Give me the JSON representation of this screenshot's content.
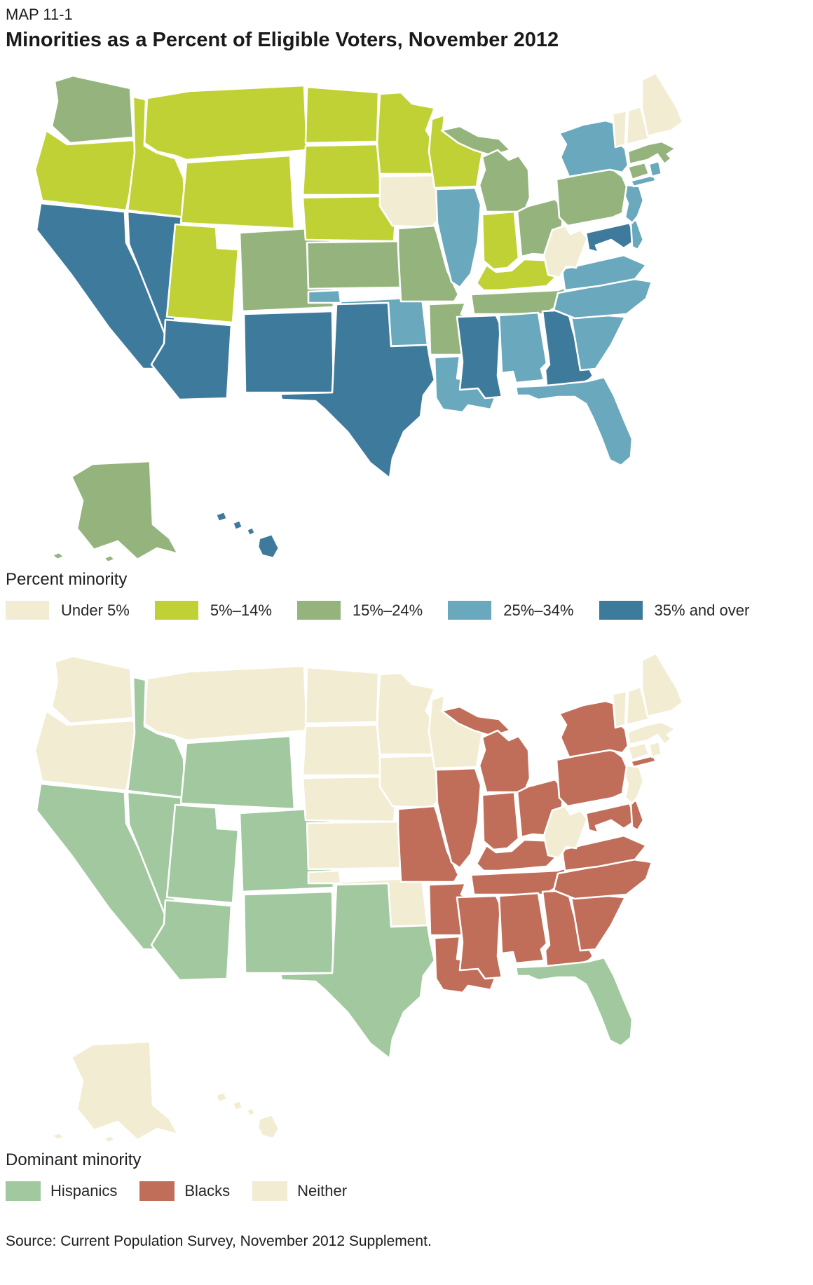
{
  "page": {
    "kicker": "MAP 11-1",
    "title": "Minorities as a Percent of Eligible Voters, November 2012",
    "source": "Source: Current Population Survey, November 2012 Supplement."
  },
  "chart_data": [
    {
      "type": "choropleth-map",
      "id": "percent-minority",
      "legend_title": "Percent minority",
      "legend_position": "below",
      "categories": [
        {
          "id": "under5",
          "label": "Under 5%",
          "color": "#f2ecd2"
        },
        {
          "id": "pct5_14",
          "label": "5%–14%",
          "color": "#c0d135"
        },
        {
          "id": "pct15_24",
          "label": "15%–24%",
          "color": "#95b47d"
        },
        {
          "id": "pct25_34",
          "label": "25%–34%",
          "color": "#69a8bd"
        },
        {
          "id": "pct35over",
          "label": "35% and over",
          "color": "#3e7a9c"
        }
      ],
      "states": {
        "WA": "pct15_24",
        "OR": "pct5_14",
        "CA": "pct35over",
        "NV": "pct35over",
        "ID": "pct5_14",
        "MT": "pct5_14",
        "WY": "pct5_14",
        "UT": "pct5_14",
        "CO": "pct15_24",
        "AZ": "pct35over",
        "NM": "pct35over",
        "ND": "pct5_14",
        "SD": "pct5_14",
        "NE": "pct5_14",
        "KS": "pct15_24",
        "OK": "pct25_34",
        "TX": "pct35over",
        "MN": "pct5_14",
        "IA": "under5",
        "MO": "pct15_24",
        "AR": "pct15_24",
        "LA": "pct25_34",
        "WI": "pct5_14",
        "IL": "pct25_34",
        "MS": "pct35over",
        "MI": "pct15_24",
        "IN": "pct5_14",
        "KY": "pct5_14",
        "TN": "pct15_24",
        "AL": "pct25_34",
        "GA": "pct35over",
        "FL": "pct25_34",
        "OH": "pct15_24",
        "WV": "under5",
        "VA": "pct25_34",
        "NC": "pct25_34",
        "SC": "pct25_34",
        "PA": "pct15_24",
        "NY": "pct25_34",
        "NJ": "pct25_34",
        "DE": "pct25_34",
        "MD": "pct35over",
        "CT": "pct15_24",
        "RI": "pct25_34",
        "MA": "pct15_24",
        "VT": "under5",
        "NH": "under5",
        "ME": "under5",
        "AK": "pct15_24",
        "HI": "pct35over"
      }
    },
    {
      "type": "choropleth-map",
      "id": "dominant-minority",
      "legend_title": "Dominant minority",
      "legend_position": "below",
      "categories": [
        {
          "id": "hispanics",
          "label": "Hispanics",
          "color": "#a1c89e"
        },
        {
          "id": "blacks",
          "label": "Blacks",
          "color": "#c06e59"
        },
        {
          "id": "neither",
          "label": "Neither",
          "color": "#f2ecd2"
        }
      ],
      "states": {
        "WA": "neither",
        "OR": "neither",
        "CA": "hispanics",
        "NV": "hispanics",
        "ID": "hispanics",
        "MT": "neither",
        "WY": "hispanics",
        "UT": "hispanics",
        "CO": "hispanics",
        "AZ": "hispanics",
        "NM": "hispanics",
        "ND": "neither",
        "SD": "neither",
        "NE": "neither",
        "KS": "neither",
        "OK": "neither",
        "TX": "hispanics",
        "MN": "neither",
        "IA": "neither",
        "MO": "blacks",
        "AR": "blacks",
        "LA": "blacks",
        "WI": "neither",
        "IL": "blacks",
        "MS": "blacks",
        "MI": "blacks",
        "IN": "blacks",
        "KY": "blacks",
        "TN": "blacks",
        "AL": "blacks",
        "GA": "blacks",
        "FL": "hispanics",
        "OH": "blacks",
        "WV": "neither",
        "VA": "blacks",
        "NC": "blacks",
        "SC": "blacks",
        "PA": "blacks",
        "NY": "blacks",
        "NJ": "neither",
        "DE": "blacks",
        "MD": "blacks",
        "CT": "neither",
        "RI": "neither",
        "MA": "neither",
        "VT": "neither",
        "NH": "neither",
        "ME": "neither",
        "AK": "neither",
        "HI": "neither"
      }
    }
  ]
}
